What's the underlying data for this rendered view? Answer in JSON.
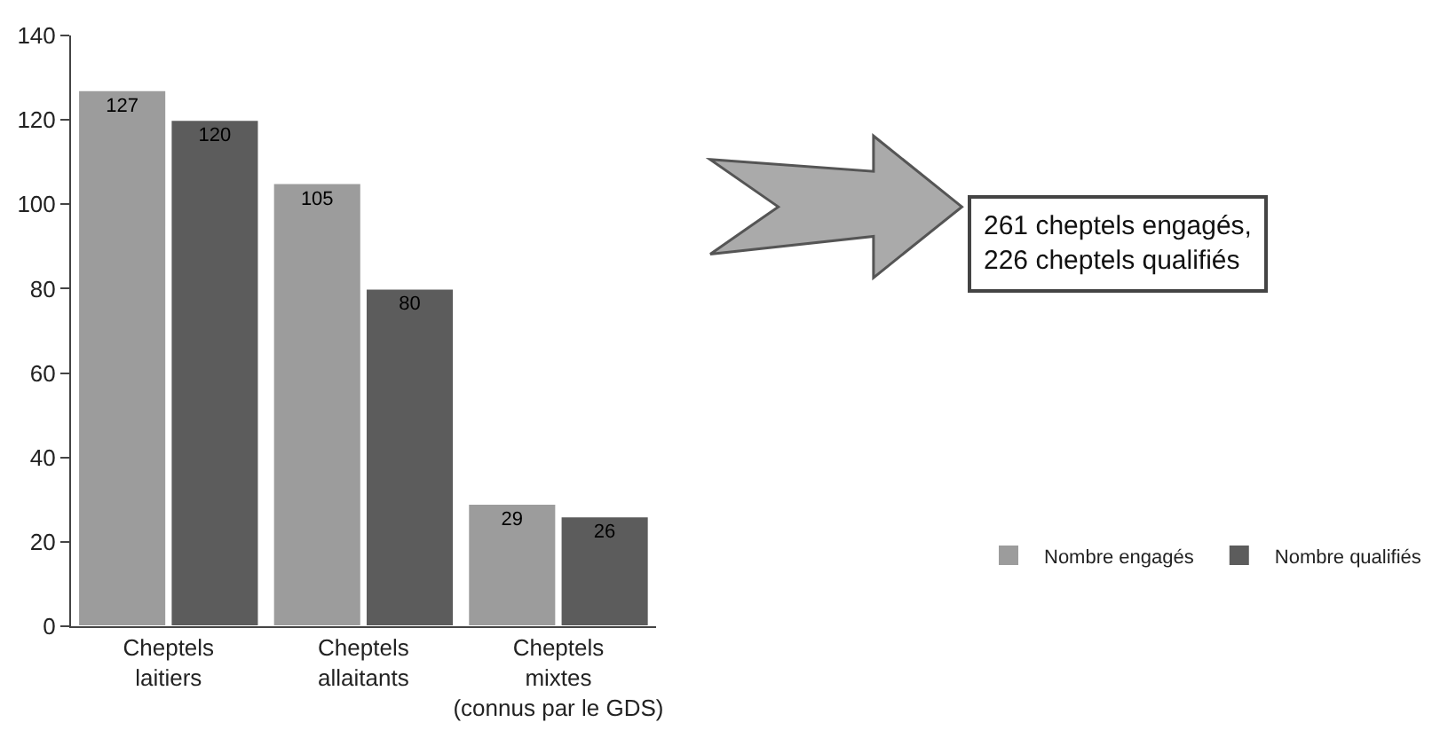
{
  "chart_data": {
    "type": "bar",
    "categories": [
      "Cheptels\nlaitiers",
      "Cheptels\nallaitants",
      "Cheptels\nmixtes\n(connus par le GDS)"
    ],
    "series": [
      {
        "name": "Nombre engagés",
        "color": "#9c9c9c",
        "values": [
          127,
          105,
          29
        ]
      },
      {
        "name": "Nombre qualifiés",
        "color": "#5c5c5c",
        "values": [
          120,
          80,
          26
        ]
      }
    ],
    "ylim": [
      0,
      140
    ],
    "yticks": [
      0,
      20,
      40,
      60,
      80,
      100,
      120,
      140
    ],
    "data_labels": true,
    "legend": "bottom right",
    "annotations": [
      "261 cheptels engagés,\n226 cheptels qualifiés"
    ]
  }
}
